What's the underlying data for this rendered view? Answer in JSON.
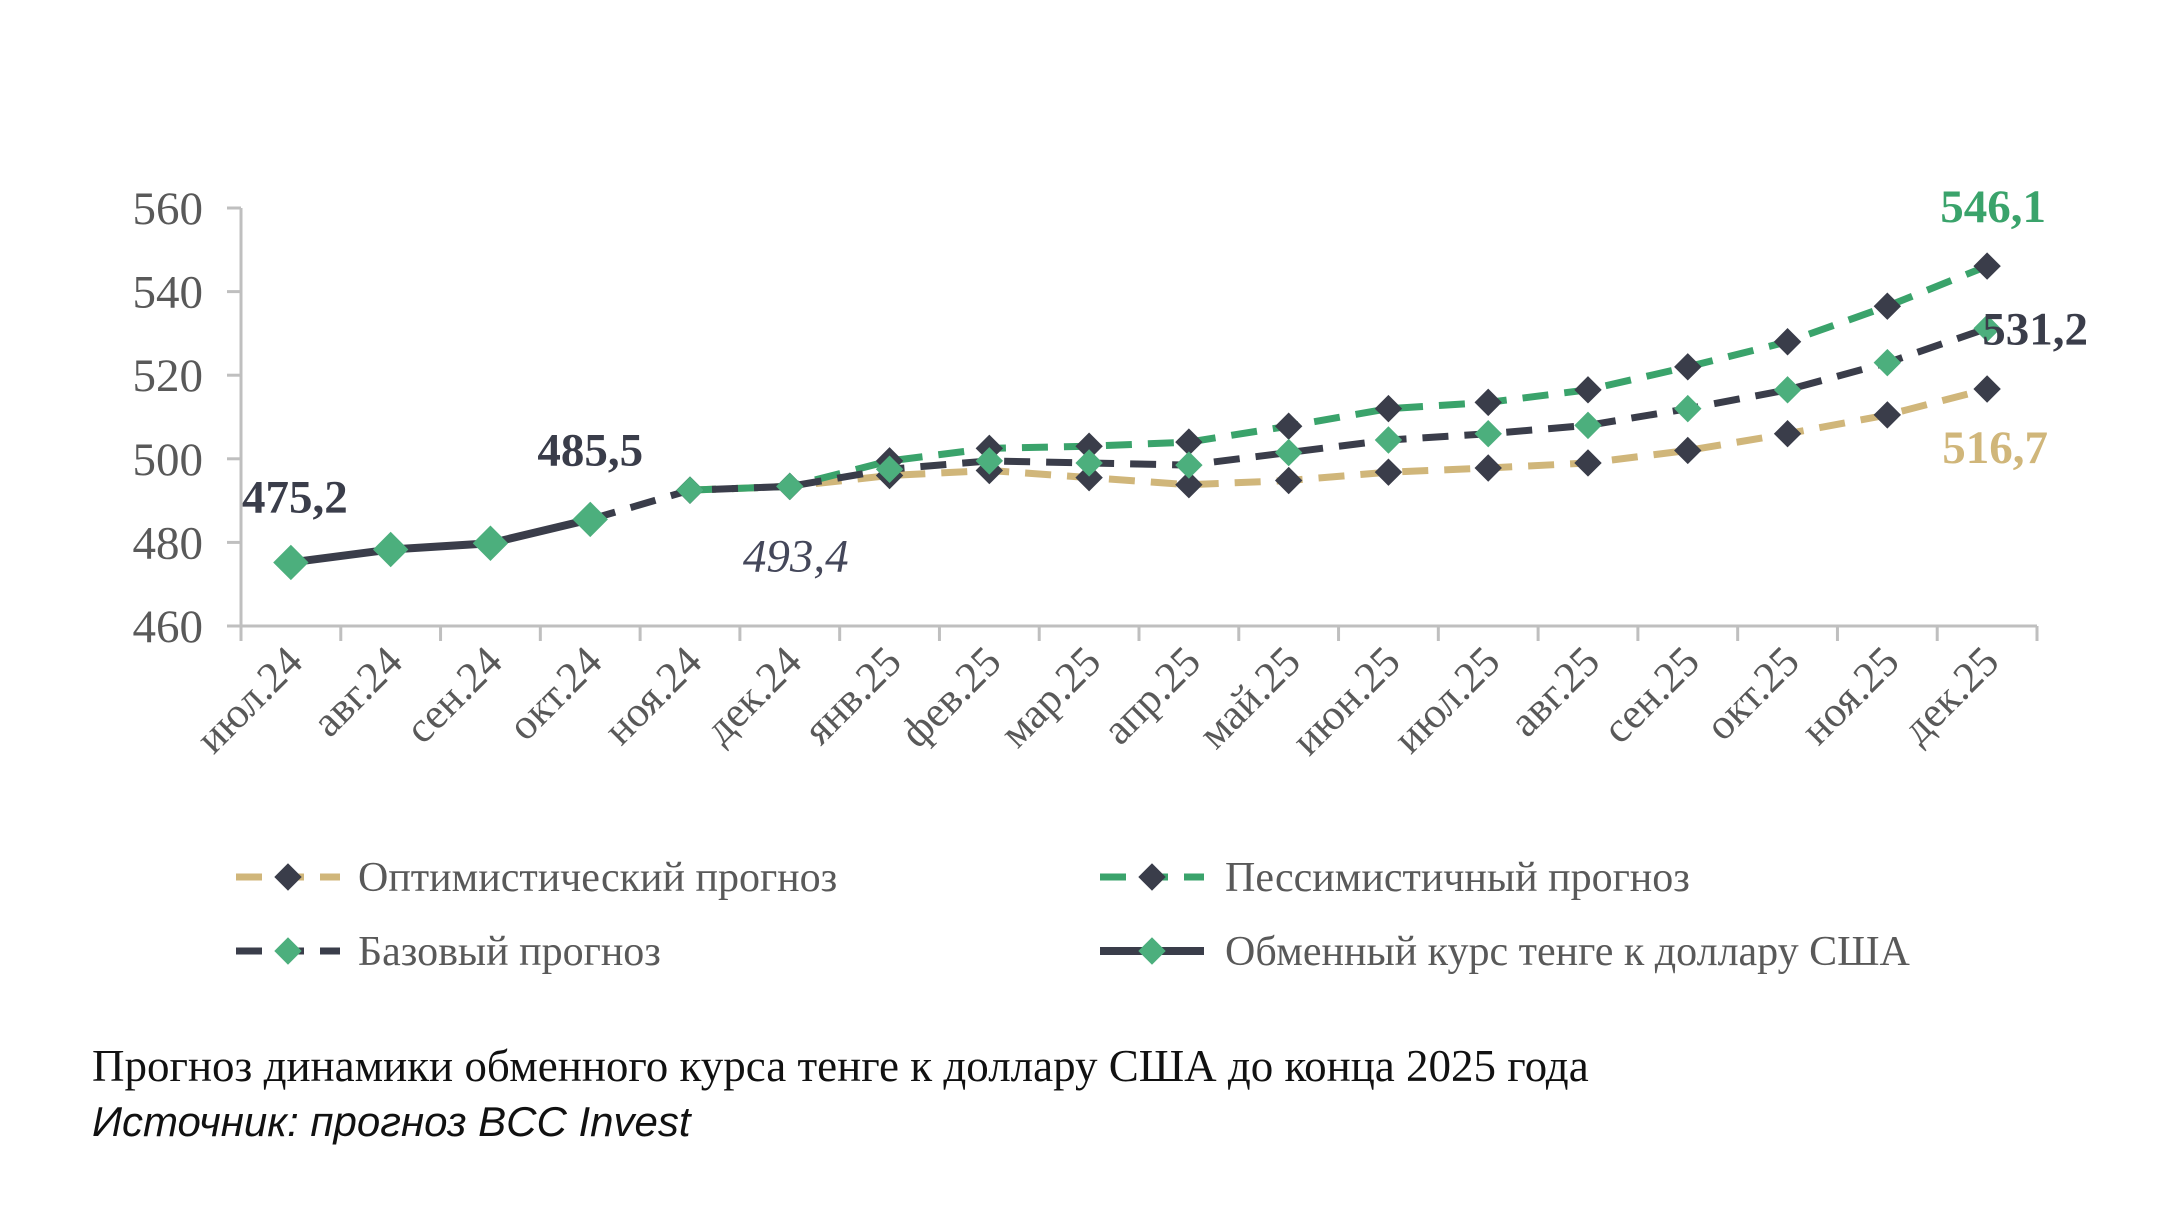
{
  "chart_data": {
    "type": "line",
    "categories": [
      "июл.24",
      "авг.24",
      "сен.24",
      "окт.24",
      "ноя.24",
      "дек.24",
      "янв.25",
      "фев.25",
      "мар.25",
      "апр.25",
      "май.25",
      "июн.25",
      "июл.25",
      "авг.25",
      "сен.25",
      "окт.25",
      "ноя.25",
      "дек.25"
    ],
    "ylim": [
      460,
      560
    ],
    "yticks": [
      "560",
      "540",
      "520",
      "500",
      "480",
      "460"
    ],
    "grid": false,
    "legend_position": "bottom",
    "series": [
      {
        "name": "Оптимистический прогноз",
        "style": "dashed",
        "color": "#d0b67a",
        "marker_color": "#3a3d4a",
        "values": [
          null,
          null,
          null,
          null,
          492.5,
          493.4,
          496.0,
          497.2,
          495.5,
          493.8,
          494.8,
          496.8,
          497.8,
          499.0,
          502.0,
          506.0,
          510.5,
          516.7
        ]
      },
      {
        "name": "Пессимистичный прогноз",
        "style": "dashed",
        "color": "#3aa36b",
        "marker_color": "#3a3d4a",
        "values": [
          null,
          null,
          null,
          null,
          492.5,
          493.4,
          499.5,
          502.5,
          503.0,
          504.0,
          507.8,
          512.0,
          513.5,
          516.5,
          522.0,
          528.0,
          536.5,
          546.1
        ]
      },
      {
        "name": "Базовый прогноз",
        "style": "dashed",
        "color": "#3a3d4a",
        "marker_color": "#4caf7d",
        "values": [
          null,
          null,
          null,
          485.5,
          492.5,
          493.4,
          497.5,
          499.5,
          499.0,
          498.5,
          501.5,
          504.5,
          506.0,
          508.0,
          512.0,
          516.5,
          523.0,
          531.2
        ]
      },
      {
        "name": "Обменный курс тенге к доллару США",
        "style": "solid",
        "color": "#3a3d4a",
        "marker_color": "#4caf7d",
        "values": [
          475.2,
          478.3,
          479.8,
          485.5,
          null,
          null,
          null,
          null,
          null,
          null,
          null,
          null,
          null,
          null,
          null,
          null,
          null,
          null
        ]
      }
    ],
    "annotations": [
      {
        "text": "475,2",
        "color": "#3a3d4a"
      },
      {
        "text": "485,5",
        "color": "#3a3d4a"
      },
      {
        "text": "493,4",
        "color": "#44475a"
      },
      {
        "text": "546,1",
        "color": "#3aa36b"
      },
      {
        "text": "531,2",
        "color": "#3a3d4a"
      },
      {
        "text": "516,7",
        "color": "#d0b67a"
      }
    ]
  },
  "caption": {
    "title": "Прогноз динамики обменного курса тенге к доллару США до конца 2025 года",
    "source": "Источник: прогноз BCC Invest"
  }
}
